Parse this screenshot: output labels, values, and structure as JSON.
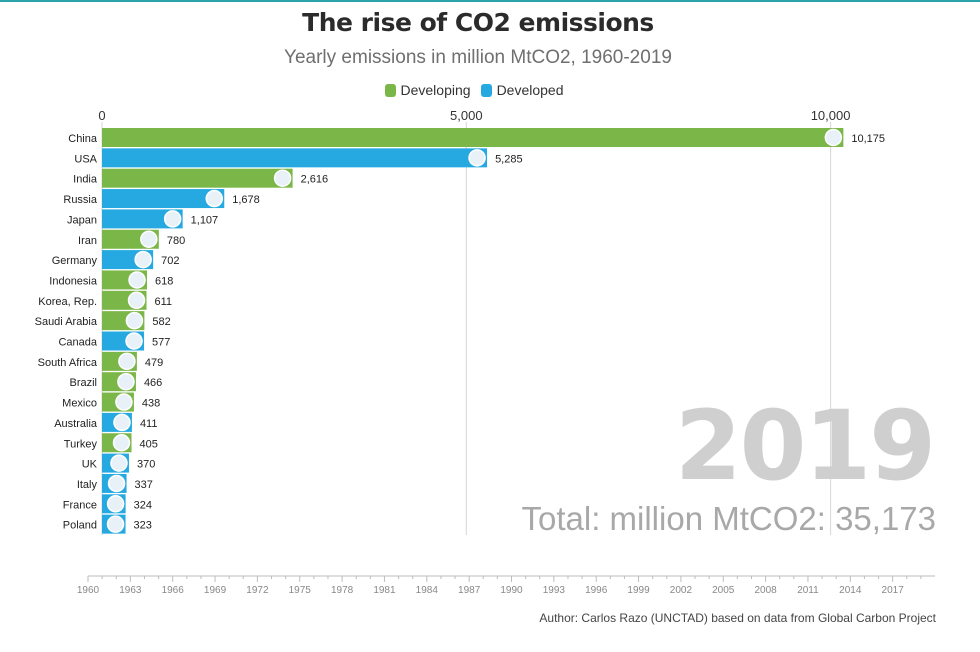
{
  "chart_data": {
    "type": "bar",
    "title": "The rise of CO2 emissions",
    "subtitle": "Yearly emissions in million MtCO2, 1960-2019",
    "legend": [
      {
        "name": "Developing",
        "color": "#7ab648"
      },
      {
        "name": "Developed",
        "color": "#26a9e1"
      }
    ],
    "legend_position": "top",
    "x_axis_ticks": [
      0,
      5000,
      10000
    ],
    "x_axis_tick_labels": [
      "0",
      "5,000",
      "10,000"
    ],
    "xlim": [
      0,
      11000
    ],
    "grid": true,
    "categories": [
      "China",
      "USA",
      "India",
      "Russia",
      "Japan",
      "Iran",
      "Germany",
      "Indonesia",
      "Korea, Rep.",
      "Saudi Arabia",
      "Canada",
      "South Africa",
      "Brazil",
      "Mexico",
      "Australia",
      "Turkey",
      "UK",
      "Italy",
      "France",
      "Poland"
    ],
    "values": [
      10175,
      5285,
      2616,
      1678,
      1107,
      780,
      702,
      618,
      611,
      582,
      577,
      479,
      466,
      438,
      411,
      405,
      370,
      337,
      324,
      323
    ],
    "value_labels": [
      "10,175",
      "5,285",
      "2,616",
      "1,678",
      "1,107",
      "780",
      "702",
      "618",
      "611",
      "582",
      "577",
      "479",
      "466",
      "438",
      "411",
      "405",
      "370",
      "337",
      "324",
      "323"
    ],
    "groups": [
      "Developing",
      "Developed",
      "Developing",
      "Developed",
      "Developed",
      "Developing",
      "Developed",
      "Developing",
      "Developing",
      "Developing",
      "Developed",
      "Developing",
      "Developing",
      "Developing",
      "Developed",
      "Developing",
      "Developed",
      "Developed",
      "Developed",
      "Developed"
    ],
    "year": "2019",
    "total_text": "Total: million MtCO2: 35,173",
    "timeline": {
      "start": 1960,
      "end": 2019,
      "current": 2019,
      "tick_labels": [
        "1960",
        "1963",
        "1966",
        "1969",
        "1972",
        "1975",
        "1978",
        "1981",
        "1984",
        "1987",
        "1990",
        "1993",
        "1996",
        "1999",
        "2002",
        "2005",
        "2008",
        "2011",
        "2014",
        "2017"
      ]
    }
  },
  "credit": "Author: Carlos Razo (UNCTAD) based on data from Global Carbon Project"
}
